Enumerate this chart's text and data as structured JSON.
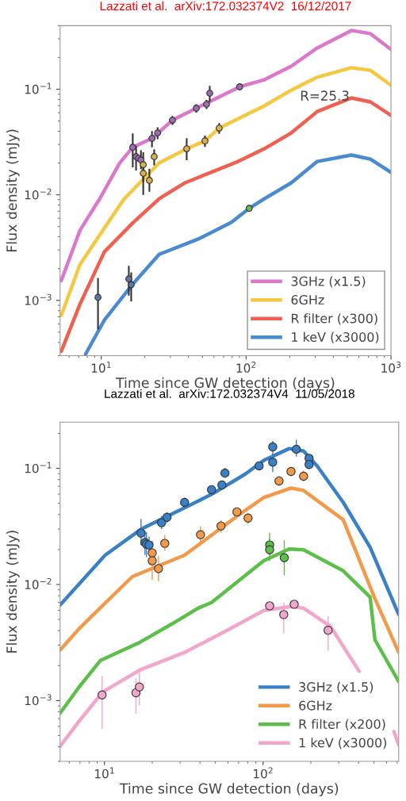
{
  "chart_data": [
    {
      "type": "line",
      "title": "Lazzati et al.  arXiv:172.032374V2  16/12/2017",
      "xlabel": "Time since GW detection (days)",
      "ylabel": "Flux density (mJy)",
      "log": "xy",
      "xlim": [
        5.2,
        1000
      ],
      "ylim": [
        0.0003,
        0.4
      ],
      "xticks": [
        {
          "value": 10,
          "label": "10$^{1}$"
        },
        {
          "value": 100,
          "label": "10$^{2}$"
        },
        {
          "value": 1000,
          "label": "10$^{3}$"
        }
      ],
      "yticks": [
        {
          "value": 0.001,
          "label": "10$^{−3}$"
        },
        {
          "value": 0.01,
          "label": "10$^{−2}$"
        },
        {
          "value": 0.1,
          "label": "10$^{−1}$"
        }
      ],
      "legend": "lower right",
      "grid": false,
      "annotations": [
        "R=25.3"
      ],
      "series": [
        {
          "name": "3GHz (x1.5)",
          "color": "#dd77cc",
          "x": [
            5.3,
            7.12,
            9.75,
            13.4,
            16.5,
            22.4,
            31.0,
            45.3,
            90.3,
            133.6,
            205,
            310,
            533,
            721,
            1000
          ],
          "values": [
            0.00154,
            0.00459,
            0.00916,
            0.02,
            0.0282,
            0.0342,
            0.0509,
            0.0661,
            0.1054,
            0.123,
            0.165,
            0.246,
            0.36,
            0.336,
            0.238
          ]
        },
        {
          "name": "6GHz",
          "color": "#f5c842",
          "x": [
            5.3,
            7.12,
            10.5,
            14.4,
            25.1,
            38.9,
            52.0,
            65.2,
            133.6,
            205,
            310,
            533,
            721,
            1000
          ],
          "values": [
            0.00072,
            0.00218,
            0.00483,
            0.00916,
            0.02,
            0.0273,
            0.0324,
            0.0428,
            0.0695,
            0.098,
            0.13,
            0.1596,
            0.151,
            0.109
          ]
        },
        {
          "name": "R filter (x300)",
          "color": "#f06050",
          "x": [
            5.3,
            7.12,
            10.5,
            16.6,
            25.1,
            37.9,
            88.1,
            133.6,
            205,
            310,
            533,
            721,
            1000
          ],
          "values": [
            0.00033,
            0.000916,
            0.00288,
            0.00546,
            0.00916,
            0.013,
            0.0207,
            0.0273,
            0.0386,
            0.0615,
            0.0826,
            0.0758,
            0.0565
          ]
        },
        {
          "name": "1 keV (x3000)",
          "color": "#4a8ad0",
          "x": [
            7.8,
            10.5,
            16.6,
            25.1,
            47.5,
            79.3,
            105,
            133.6,
            205,
            310,
            533,
            721,
            1000
          ],
          "values": [
            0.00031,
            0.00065,
            0.00144,
            0.00273,
            0.00385,
            0.0055,
            0.00745,
            0.00916,
            0.013,
            0.0207,
            0.0238,
            0.0218,
            0.0163
          ]
        },
        {
          "type": "scatter",
          "color": "#9a6fae",
          "x": [
            16.5,
            17.4,
            18.1,
            18.8,
            22.4,
            24.5,
            31.0,
            45.3,
            53.3,
            56.1,
            90.3
          ],
          "values": [
            0.0282,
            0.023,
            0.0222,
            0.0214,
            0.0342,
            0.0386,
            0.0509,
            0.0661,
            0.072,
            0.0917,
            0.1054
          ],
          "errors": [
            [
              0.0182,
              0.0382
            ],
            [
              0.017,
              0.029
            ],
            null,
            [
              0.0174,
              0.0264
            ],
            [
              0.0282,
              0.0402
            ],
            [
              0.0336,
              0.0436
            ],
            [
              0.0459,
              0.0559
            ],
            [
              0.0601,
              0.0721
            ],
            [
              0.065,
              0.079
            ],
            [
              0.0757,
              0.1077
            ],
            [
              0.0974,
              0.1134
            ]
          ]
        },
        {
          "type": "scatter",
          "color": "#d9b04e",
          "x": [
            19.5,
            19.5,
            21.5,
            23.2,
            38.9,
            52.0,
            65.2
          ],
          "values": [
            0.0193,
            0.016,
            0.0137,
            0.023,
            0.0273,
            0.0324,
            0.0428
          ],
          "errors": [
            [
              0.0133,
              0.0253
            ],
            [
              0.01,
              0.02
            ],
            [
              0.0107,
              0.0177
            ],
            [
              0.019,
              0.027
            ],
            [
              0.0213,
              0.0343
            ],
            [
              0.0284,
              0.0364
            ],
            [
              0.0378,
              0.0478
            ]
          ]
        },
        {
          "type": "scatter",
          "color": "#5a78a8",
          "x": [
            9.5,
            15.5,
            16.1
          ],
          "values": [
            0.00107,
            0.0016,
            0.00141
          ],
          "errors": [
            [
              0.00053,
              0.00163
            ],
            [
              0.00111,
              0.00212
            ],
            [
              0.00098,
              0.00184
            ]
          ]
        },
        {
          "type": "scatter",
          "color": "#66bb55",
          "x": [
            105
          ],
          "values": [
            0.00745
          ]
        }
      ]
    },
    {
      "type": "line",
      "title": "Lazzati et al.  arXiv:172.032374V4  11/05/2018",
      "xlabel": "Time since GW detection (days)",
      "ylabel": "Flux density (mJy)",
      "log": "xy",
      "xlim": [
        5.25,
        716
      ],
      "ylim": [
        0.0003,
        0.25
      ],
      "xticks": [
        {
          "value": 10,
          "label": "10$^{1}$"
        },
        {
          "value": 100,
          "label": "10$^{2}$"
        }
      ],
      "yticks": [
        {
          "value": 0.001,
          "label": "10$^{−3}$"
        },
        {
          "value": 0.01,
          "label": "10$^{−2}$"
        },
        {
          "value": 0.1,
          "label": "10$^{−1}$"
        }
      ],
      "legend": "lower right",
      "grid": false,
      "series": [
        {
          "name": "3GHz (x1.5)",
          "color": "#3a80c6",
          "x": [
            5.25,
            10.1,
            17.0,
            32.0,
            47.3,
            77.6,
            101,
            146,
            180,
            219,
            320,
            473,
            716
          ],
          "values": [
            0.00666,
            0.0179,
            0.0299,
            0.0457,
            0.0597,
            0.0896,
            0.117,
            0.148,
            0.141,
            0.105,
            0.0509,
            0.0209,
            0.00551
          ]
        },
        {
          "name": "6GHz",
          "color": "#f39a4a",
          "x": [
            5.25,
            6.92,
            8.04,
            15.0,
            32.0,
            69.2,
            101,
            150,
            180,
            320,
            507,
            716
          ],
          "values": [
            0.00272,
            0.00416,
            0.0051,
            0.0117,
            0.0179,
            0.0391,
            0.056,
            0.0676,
            0.0645,
            0.0361,
            0.00755,
            0.0026
          ]
        },
        {
          "name": "R filter (x200)",
          "color": "#5cbf4a",
          "x": [
            5.25,
            6.92,
            9.44,
            16.8,
            26.6,
            38.9,
            47.3,
            69.2,
            101,
            146,
            180,
            320,
            473,
            507,
            716
          ],
          "values": [
            0.00078,
            0.00131,
            0.00222,
            0.00319,
            0.00457,
            0.00625,
            0.007,
            0.0106,
            0.016,
            0.0202,
            0.0199,
            0.0131,
            0.00779,
            0.00334,
            0.00146
          ]
        },
        {
          "name": "1 keV (x3000)",
          "color": "#f2a6cc",
          "x": [
            5.25,
            6.92,
            9.77,
            16.8,
            32.0,
            56.9,
            101,
            150,
            180,
            266,
            403,
            550,
            668,
            716
          ],
          "values": [
            0.000403,
            0.000665,
            0.00119,
            0.00184,
            0.0026,
            0.00391,
            0.00597,
            0.00646,
            0.00625,
            0.00436,
            0.00179,
            null,
            0.000543,
            0.000416
          ]
        },
        {
          "type": "scatter",
          "color": "#3a80c6",
          "x": [
            17.0,
            18.0,
            18.4,
            19.1,
            22.9,
            24.8,
            32.0,
            47.3,
            55.0,
            57.5,
            94.4,
            115,
            115,
            162,
            195,
            195
          ],
          "values": [
            0.0277,
            0.023,
            0.0222,
            0.0219,
            0.034,
            0.0379,
            0.0509,
            0.0655,
            0.0719,
            0.091,
            0.105,
            0.153,
            0.113,
            0.146,
            0.122,
            0.108
          ],
          "errors": [
            [
              0.0217,
              0.0367
            ],
            [
              0.018,
              0.029
            ],
            [
              0.0172,
              0.0282
            ],
            [
              0.0179,
              0.0259
            ],
            [
              0.03,
              0.039
            ],
            [
              0.0339,
              0.0419
            ],
            [
              0.0469,
              0.0559
            ],
            [
              0.0605,
              0.0705
            ],
            [
              0.0659,
              0.0779
            ],
            [
              0.083,
              0.101
            ],
            [
              0.099,
              0.111
            ],
            [
              0.123,
              0.173
            ],
            [
              0.093,
              0.133
            ],
            [
              0.126,
              0.176
            ],
            [
              0.112,
              0.132
            ],
            [
              0.098,
              0.118
            ]
          ]
        },
        {
          "type": "scatter",
          "color": "#f39a4a",
          "x": [
            20.0,
            20.0,
            21.9,
            24.0,
            40.3,
            54.3,
            68.4,
            80.4,
            126,
            150,
            180
          ],
          "values": [
            0.0187,
            0.016,
            0.0137,
            0.0226,
            0.0268,
            0.0319,
            0.0422,
            0.0373,
            0.0779,
            0.094,
            0.0855
          ],
          "errors": [
            [
              0.0147,
              0.0237
            ],
            [
              0.011,
              0.022
            ],
            [
              0.0107,
              0.0177
            ],
            [
              0.0196,
              0.0266
            ],
            [
              0.0218,
              0.0318
            ],
            [
              0.0279,
              0.0359
            ],
            [
              0.0382,
              0.0462
            ],
            [
              0.0333,
              0.0413
            ],
            [
              0.0709,
              0.0859
            ],
            [
              0.086,
              0.102
            ],
            [
              0.0775,
              0.0955
            ]
          ]
        },
        {
          "type": "scatter",
          "color": "#5cbf4a",
          "x": [
            110,
            110,
            136
          ],
          "values": [
            0.0219,
            0.0199,
            0.017
          ],
          "errors": [
            [
              0.0179,
              0.0279
            ],
            [
              0.0159,
              0.0249
            ],
            [
              0.012,
              0.024
            ]
          ]
        },
        {
          "type": "scatter",
          "color": "#f2a6cc",
          "x": [
            9.66,
            15.8,
            16.6,
            110,
            135,
            157,
            257
          ],
          "values": [
            0.00112,
            0.00117,
            0.00131,
            0.00655,
            0.00551,
            0.00676,
            0.00403
          ],
          "errors": [
            [
              0.00057,
              0.00164
            ],
            [
              0.00077,
              0.00157
            ],
            [
              0.00091,
              0.00181
            ],
            [
              0.00605,
              0.00705
            ],
            [
              0.0038,
              0.007
            ],
            [
              0.00626,
              0.00726
            ],
            [
              0.0027,
              0.0053
            ]
          ]
        }
      ]
    }
  ]
}
